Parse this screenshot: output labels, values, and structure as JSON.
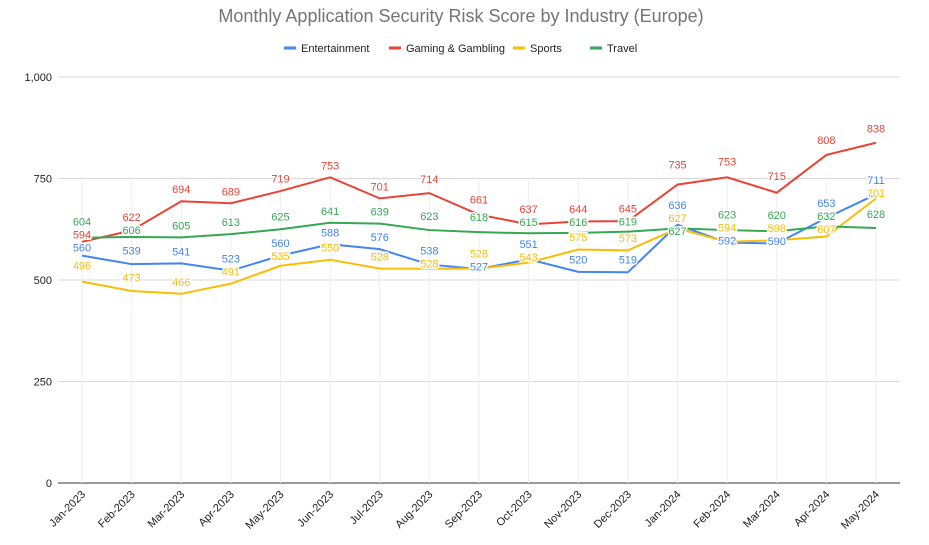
{
  "chart_data": {
    "type": "line",
    "title": "Monthly Application Security Risk Score by Industry (Europe)",
    "xlabel": "",
    "ylabel": "",
    "ylim": [
      0,
      1000
    ],
    "yticks": [
      0,
      250,
      500,
      750,
      1000
    ],
    "ytick_labels": [
      "0",
      "250",
      "500",
      "750",
      "1,000"
    ],
    "grid": true,
    "legend_position": "top",
    "categories": [
      "Jan-2023",
      "Feb-2023",
      "Mar-2023",
      "Apr-2023",
      "May-2023",
      "Jun-2023",
      "Jul-2023",
      "Aug-2023",
      "Sep-2023",
      "Oct-2023",
      "Nov-2023",
      "Dec-2023",
      "Jan-2024",
      "Feb-2024",
      "Mar-2024",
      "Apr-2024",
      "May-2024"
    ],
    "series": [
      {
        "name": "Entertainment",
        "color": "#4285f4",
        "values": [
          560,
          539,
          541,
          523,
          560,
          588,
          576,
          538,
          527,
          551,
          520,
          519,
          636,
          592,
          590,
          653,
          711
        ]
      },
      {
        "name": "Gaming & Gambling",
        "color": "#ea4335",
        "values": [
          594,
          622,
          694,
          689,
          719,
          753,
          701,
          714,
          661,
          637,
          644,
          645,
          735,
          753,
          715,
          808,
          838
        ]
      },
      {
        "name": "Sports",
        "color": "#fbbc04",
        "values": [
          496,
          473,
          466,
          491,
          535,
          550,
          528,
          528,
          528,
          543,
          575,
          573,
          627,
          594,
          598,
          607,
          701
        ]
      },
      {
        "name": "Travel",
        "color": "#34a853",
        "values": [
          604,
          606,
          605,
          613,
          625,
          641,
          639,
          623,
          618,
          615,
          616,
          619,
          627,
          623,
          620,
          632,
          628
        ]
      }
    ]
  }
}
